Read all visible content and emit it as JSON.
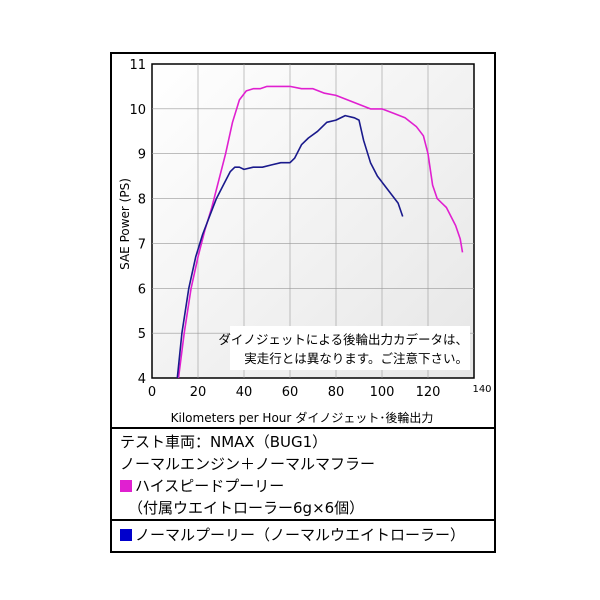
{
  "chart_data": {
    "type": "line",
    "xlabel": "Kilometers per Hour",
    "xlabel_suffix": "ダイノジェット･後輪出力",
    "ylabel": "SAE Power (PS)",
    "xlim": [
      0,
      140
    ],
    "ylim": [
      4,
      11
    ],
    "xticks": [
      "0",
      "20",
      "40",
      "60",
      "80",
      "100",
      "120",
      "140"
    ],
    "yticks": [
      "4",
      "5",
      "6",
      "7",
      "8",
      "9",
      "10",
      "11"
    ],
    "grid": true,
    "annotation": [
      "ダイノジェットによる後輪出力カデータは、",
      "実走行とは異なります。ご注意下さい。"
    ],
    "series": [
      {
        "name": "ハイスピードプーリー",
        "color": "#e020d0",
        "x": [
          11.5,
          14,
          17,
          20,
          23,
          26,
          29,
          32,
          35,
          38,
          41,
          44,
          47,
          50,
          55,
          60,
          65,
          70,
          75,
          80,
          85,
          90,
          95,
          100,
          105,
          110,
          115,
          118,
          120,
          122,
          124,
          126,
          128,
          130,
          132,
          134,
          135
        ],
        "y": [
          4.0,
          5.0,
          6.0,
          6.7,
          7.3,
          7.8,
          8.4,
          9.0,
          9.7,
          10.2,
          10.4,
          10.45,
          10.45,
          10.5,
          10.5,
          10.5,
          10.45,
          10.45,
          10.35,
          10.3,
          10.2,
          10.1,
          10.0,
          10.0,
          9.9,
          9.8,
          9.6,
          9.4,
          9.0,
          8.3,
          8.0,
          7.9,
          7.8,
          7.6,
          7.4,
          7.1,
          6.8
        ]
      },
      {
        "name": "ノーマルプーリー（ノーマルウエイトローラー）",
        "color": "#1a1a8c",
        "x": [
          11,
          13,
          16,
          19,
          22,
          25,
          28,
          31,
          34,
          36,
          38,
          40,
          44,
          48,
          52,
          56,
          60,
          62,
          65,
          68,
          72,
          76,
          80,
          84,
          88,
          90,
          92,
          95,
          98,
          101,
          104,
          107,
          109
        ],
        "y": [
          4.0,
          5.0,
          6.0,
          6.7,
          7.2,
          7.6,
          8.0,
          8.3,
          8.6,
          8.7,
          8.7,
          8.65,
          8.7,
          8.7,
          8.75,
          8.8,
          8.8,
          8.9,
          9.2,
          9.35,
          9.5,
          9.7,
          9.75,
          9.85,
          9.8,
          9.75,
          9.3,
          8.8,
          8.5,
          8.3,
          8.1,
          7.9,
          7.6
        ]
      }
    ]
  },
  "legend": {
    "line1": "テスト車両：NMAX（BUG1）",
    "line2": "ノーマルエンジン＋ノーマルマフラー",
    "high_speed_label": "ハイスピードプーリー",
    "high_speed_sub": "（付属ウエイトローラー6g×6個）",
    "normal_label": "ノーマルプーリー（ノーマルウエイトローラー）",
    "high_speed_color": "#e020d0",
    "normal_color": "#0000cc"
  }
}
